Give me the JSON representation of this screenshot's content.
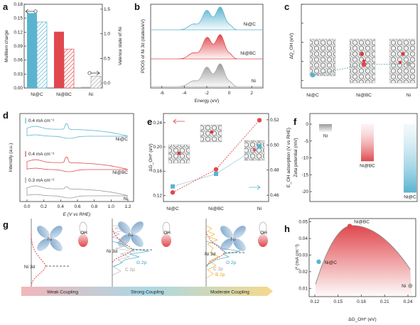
{
  "panels": {
    "a": {
      "label": "a",
      "ylabel_left": "Mulliken charge",
      "ylabel_right": "Valence state of Ni",
      "left_ticks": [
        "0.00",
        "0.03",
        "0.06",
        "0.09",
        "0.12",
        "0.15",
        "0.18"
      ],
      "right_ticks": [
        "0.0",
        "0.5",
        "1.0",
        "1.5"
      ],
      "categories": [
        "Ni@C",
        "Ni@BC",
        "Ni"
      ],
      "charge": [
        0.161,
        0.121,
        0.0
      ],
      "valence": [
        1.24,
        0.69,
        0.14
      ],
      "colors": {
        "Ni@C": "#5ab4d0",
        "Ni@BC": "#e0484d",
        "Ni": "#a8a8a8"
      }
    },
    "b": {
      "label": "b",
      "ylabel": "PDOS of Ni 3d (states/eV)",
      "xlabel": "Energy (eV)",
      "x_ticks": [
        "-6",
        "-4",
        "-2",
        "0",
        "2"
      ],
      "series": [
        {
          "name": "Ni@C",
          "color": "#5ab4d0"
        },
        {
          "name": "Ni@BC",
          "color": "#e0484d"
        },
        {
          "name": "Ni",
          "color": "#a8a8a8"
        }
      ]
    },
    "c": {
      "label": "c",
      "ylabel": "ΔQ_OH (eV)",
      "y_ticks": [
        "-0.35",
        "-0.30",
        "-0.25",
        "-0.20",
        "-0.15"
      ],
      "categories": [
        "Ni@C",
        "Ni@BC",
        "Ni"
      ],
      "values": [
        -0.336,
        -0.308,
        -0.307
      ]
    },
    "d": {
      "label": "d",
      "ylabel": "Intensity (a.u.)",
      "xlabel": "E (V vs RHE)",
      "x_ticks": [
        "0.0",
        "0.2",
        "0.4",
        "0.6",
        "0.8",
        "1.0",
        "1.2"
      ],
      "scale_labels": [
        "0.4 mA cm⁻²",
        "0.4 mA cm⁻²",
        "0.3 mA cm⁻²"
      ],
      "series": [
        {
          "name": "Ni@C",
          "color": "#5ab4d0"
        },
        {
          "name": "Ni@BC",
          "color": "#e0484d"
        },
        {
          "name": "Ni",
          "color": "#999999"
        }
      ]
    },
    "e": {
      "label": "e",
      "ylabel_left": "ΔG_OH* (eV)",
      "ylabel_right": "E_OH adsorption (V vs RHE)",
      "left_ticks": [
        "0.12",
        "0.16",
        "0.20",
        "0.24"
      ],
      "right_ticks": [
        "0.46",
        "0.48",
        "0.50",
        "0.52"
      ],
      "categories": [
        "Ni@C",
        "Ni@BC",
        "Ni"
      ],
      "dG": [
        0.125,
        0.163,
        0.244
      ],
      "E_ads": [
        0.467,
        0.477,
        0.499
      ]
    },
    "f": {
      "label": "f",
      "ylabel": "Zeta potential (mV)",
      "y_ticks": [
        "0",
        "-5",
        "-10",
        "-15",
        "-20"
      ],
      "categories": [
        "Ni",
        "Ni@BC",
        "Ni@C"
      ],
      "values": [
        -2.2,
        -11.0,
        -20.3
      ]
    },
    "g": {
      "label": "g",
      "ni_label": "Ni",
      "oh_label": "OH",
      "ni3d": "Ni 3d",
      "o2p": "O 2p",
      "c2p": "C 2p",
      "b2p": "B 2p",
      "arrow_left": "Weak Coupling",
      "arrow_mid": "Strong Coupling",
      "arrow_right": "Moderate Coupling"
    },
    "h": {
      "label": "h",
      "ylabel": "j⁰ (mA cm⁻²)",
      "xlabel": "ΔG_OH* (eV)",
      "x_ticks": [
        "0.12",
        "0.15",
        "0.18",
        "0.21",
        "0.24"
      ],
      "y_ticks": [
        "0.01",
        "0.02",
        "0.03",
        "0.04",
        "0.05"
      ],
      "points": [
        {
          "name": "Ni@C",
          "x": 0.125,
          "y": 0.026,
          "color": "#5ab4d0"
        },
        {
          "name": "Ni@BC",
          "x": 0.165,
          "y": 0.0475,
          "color": "#e0484d"
        },
        {
          "name": "Ni",
          "x": 0.243,
          "y": 0.0115,
          "color": "#aaaaaa"
        }
      ]
    }
  }
}
